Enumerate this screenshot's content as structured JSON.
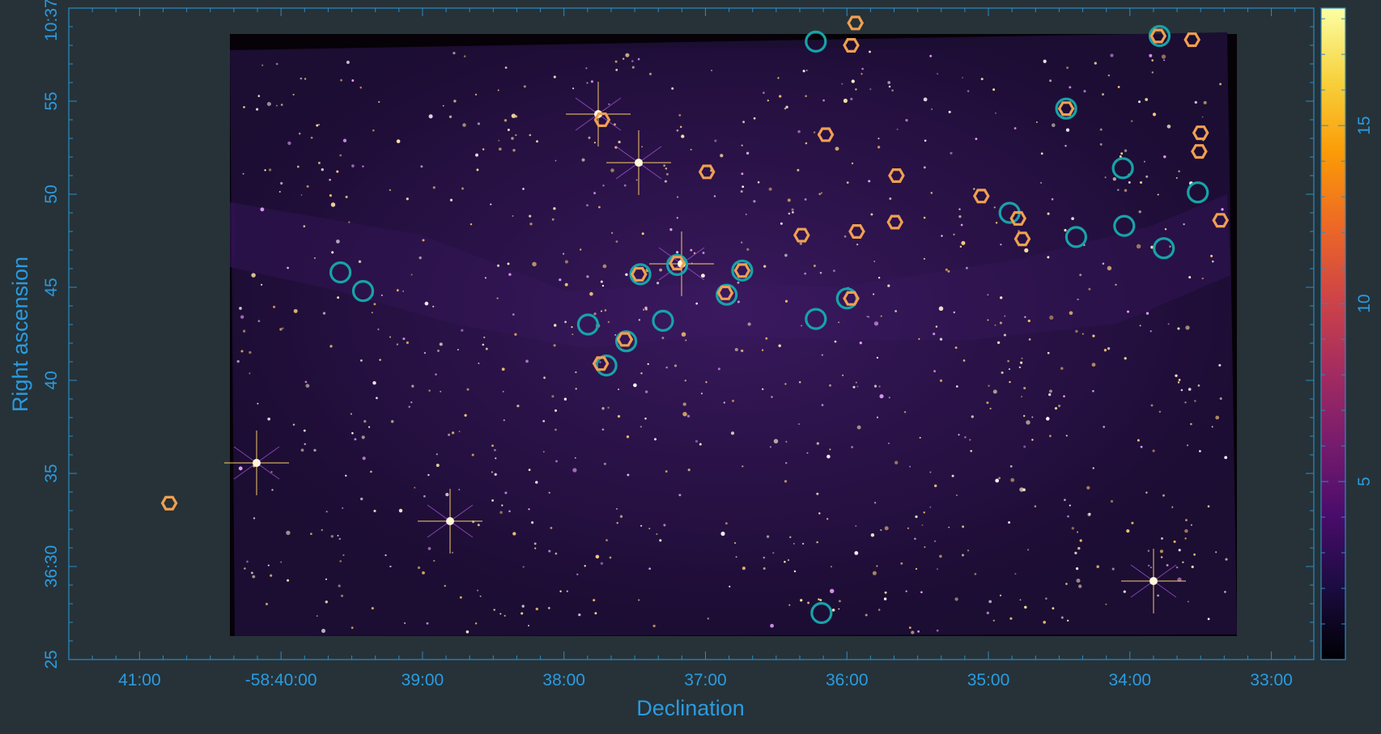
{
  "chart_data": {
    "type": "scatter",
    "xlabel": "Declination",
    "ylabel": "Right ascension",
    "x_ticks": [
      {
        "v": 41.0,
        "label": "41:00"
      },
      {
        "v": 40.0,
        "label": "-58:40:00"
      },
      {
        "v": 39.0,
        "label": "39:00"
      },
      {
        "v": 38.0,
        "label": "38:00"
      },
      {
        "v": 37.0,
        "label": "37:00"
      },
      {
        "v": 36.0,
        "label": "36:00"
      },
      {
        "v": 35.0,
        "label": "35:00"
      },
      {
        "v": 34.0,
        "label": "34:00"
      },
      {
        "v": 33.0,
        "label": "33:00"
      }
    ],
    "y_ticks": [
      {
        "v": 25,
        "label": "25"
      },
      {
        "v": 30,
        "label": "36:30"
      },
      {
        "v": 35,
        "label": "35"
      },
      {
        "v": 40,
        "label": "40"
      },
      {
        "v": 45,
        "label": "45"
      },
      {
        "v": 50,
        "label": "50"
      },
      {
        "v": 55,
        "label": "55"
      },
      {
        "v": 60,
        "label": "10:37:00"
      }
    ],
    "xlim": [
      41.5,
      32.7
    ],
    "ylim": [
      25,
      60
    ],
    "colorbar": {
      "ticks": [
        {
          "v": 5,
          "label": "5"
        },
        {
          "v": 10,
          "label": "10"
        },
        {
          "v": 15,
          "label": "15"
        }
      ],
      "range": [
        0,
        18.3
      ],
      "stops": [
        "#000004",
        "#1b0c41",
        "#4a0c6b",
        "#781c6d",
        "#a52c60",
        "#cf4446",
        "#ed6925",
        "#fb9b06",
        "#f7d13d",
        "#fcffa4"
      ]
    },
    "series": [
      {
        "marker": "circle",
        "color": "#17a3a8",
        "points": [
          [
            39.58,
            45.8
          ],
          [
            39.42,
            44.8
          ],
          [
            37.83,
            43.0
          ],
          [
            37.46,
            45.7
          ],
          [
            37.2,
            46.2
          ],
          [
            37.3,
            43.2
          ],
          [
            37.56,
            42.1
          ],
          [
            37.7,
            40.8
          ],
          [
            36.74,
            45.9
          ],
          [
            36.85,
            44.6
          ],
          [
            36.22,
            43.3
          ],
          [
            36.0,
            44.4
          ],
          [
            36.22,
            58.2
          ],
          [
            36.18,
            27.5
          ],
          [
            34.85,
            49.0
          ],
          [
            34.45,
            54.6
          ],
          [
            34.38,
            47.7
          ],
          [
            34.05,
            51.4
          ],
          [
            34.04,
            48.3
          ],
          [
            33.79,
            58.5
          ],
          [
            33.76,
            47.1
          ],
          [
            33.52,
            50.1
          ]
        ]
      },
      {
        "marker": "hexagon",
        "color": "#f0a050",
        "points": [
          [
            40.79,
            33.4
          ],
          [
            37.73,
            54.0
          ],
          [
            37.57,
            42.2
          ],
          [
            37.74,
            40.9
          ],
          [
            37.47,
            45.7
          ],
          [
            37.2,
            46.3
          ],
          [
            36.99,
            51.2
          ],
          [
            36.86,
            44.7
          ],
          [
            36.74,
            45.9
          ],
          [
            36.32,
            47.8
          ],
          [
            36.15,
            53.2
          ],
          [
            35.97,
            58.0
          ],
          [
            35.94,
            59.2
          ],
          [
            35.93,
            48.0
          ],
          [
            35.97,
            44.4
          ],
          [
            35.65,
            51.0
          ],
          [
            35.66,
            48.5
          ],
          [
            35.05,
            49.9
          ],
          [
            34.79,
            48.7
          ],
          [
            34.76,
            47.6
          ],
          [
            34.45,
            54.6
          ],
          [
            33.8,
            58.5
          ],
          [
            33.56,
            58.3
          ],
          [
            33.5,
            53.3
          ],
          [
            33.51,
            52.3
          ],
          [
            33.36,
            48.6
          ]
        ]
      }
    ]
  }
}
